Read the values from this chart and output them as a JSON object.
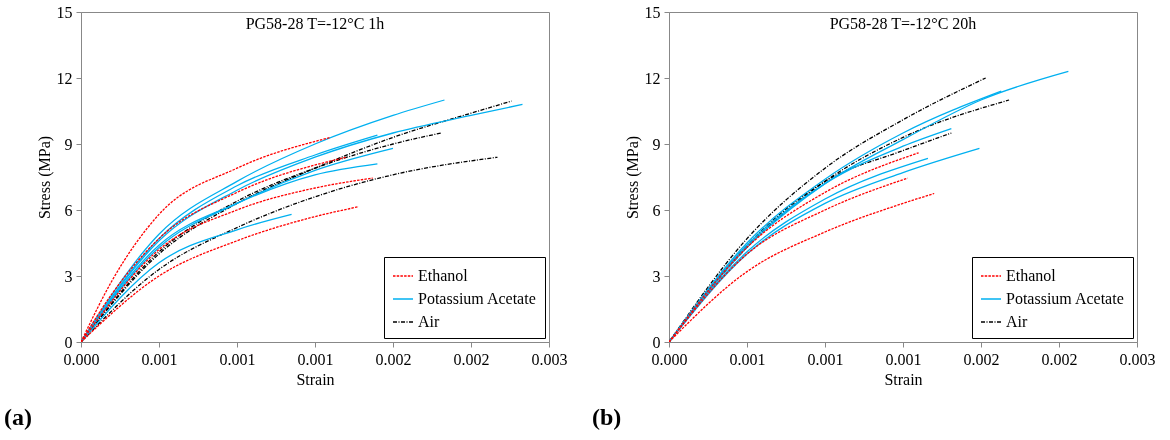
{
  "chart_data": [
    {
      "type": "line",
      "title": "PG58-28 T=-12°C 1h",
      "xlabel": "Strain",
      "ylabel": "Stress (MPa)",
      "annotations": [
        "(a)"
      ],
      "xlim": [
        0,
        0.003
      ],
      "ylim": [
        0,
        15
      ],
      "xticks": [
        {
          "value": 0,
          "label": "0.000"
        },
        {
          "value": 0.0005,
          "label": "0.001"
        },
        {
          "value": 0.001,
          "label": "0.001"
        },
        {
          "value": 0.0015,
          "label": "0.001"
        },
        {
          "value": 0.002,
          "label": "0.002"
        },
        {
          "value": 0.0025,
          "label": "0.002"
        },
        {
          "value": 0.003,
          "label": "0.003"
        }
      ],
      "yticks": [
        0,
        3,
        6,
        9,
        12,
        15
      ],
      "grid": false,
      "legend": "bottom right",
      "series": [
        {
          "name": "Ethanol",
          "color": "#ff0000",
          "line_style": "dashed",
          "x": [
            0,
            0.0002,
            0.0005,
            0.001,
            0.0016
          ],
          "values": [
            0,
            2.8,
            5.8,
            7.9,
            9.3
          ]
        },
        {
          "color": "#ff0000",
          "line_style": "dashed",
          "x": [
            0,
            0.0002,
            0.0005,
            0.001,
            0.0017
          ],
          "values": [
            0,
            2.2,
            4.7,
            6.8,
            8.4
          ]
        },
        {
          "color": "#ff0000",
          "line_style": "dashed",
          "x": [
            0,
            0.0005,
            0.001,
            0.0015,
            0.00187
          ],
          "values": [
            0,
            4.2,
            6.0,
            7.0,
            7.45
          ]
        },
        {
          "color": "#ff0000",
          "line_style": "dashed",
          "x": [
            0,
            0.0005,
            0.001,
            0.0015,
            0.00178
          ],
          "values": [
            0,
            3.0,
            4.6,
            5.7,
            6.15
          ]
        },
        {
          "name": "Potassium Acetate",
          "color": "#00b0f0",
          "line_style": "solid",
          "x": [
            0,
            0.0005,
            0.001,
            0.0015,
            0.002,
            0.00233
          ],
          "values": [
            0,
            4.9,
            7.3,
            9.0,
            10.3,
            11.0
          ]
        },
        {
          "color": "#00b0f0",
          "line_style": "solid",
          "x": [
            0,
            0.0005,
            0.001,
            0.0015,
            0.002,
            0.0025,
            0.00283
          ],
          "values": [
            0,
            4.6,
            6.9,
            8.4,
            9.5,
            10.3,
            10.8
          ]
        },
        {
          "color": "#00b0f0",
          "line_style": "solid",
          "x": [
            0,
            0.0005,
            0.001,
            0.0015,
            0.0019
          ],
          "values": [
            0,
            4.7,
            7.1,
            8.5,
            9.4
          ]
        },
        {
          "color": "#00b0f0",
          "line_style": "solid",
          "x": [
            0,
            0.0005,
            0.001,
            0.0015,
            0.0019
          ],
          "values": [
            0,
            4.4,
            6.3,
            7.6,
            8.1
          ]
        },
        {
          "color": "#00b0f0",
          "line_style": "solid",
          "x": [
            0,
            0.0005,
            0.001,
            0.0015,
            0.002
          ],
          "values": [
            0,
            4.3,
            6.3,
            7.8,
            8.8
          ]
        },
        {
          "color": "#00b0f0",
          "line_style": "solid",
          "x": [
            0,
            0.0005,
            0.001,
            0.00135
          ],
          "values": [
            0,
            3.6,
            5.1,
            5.8
          ]
        },
        {
          "name": "Air",
          "color": "#000000",
          "line_style": "dashdot",
          "x": [
            0,
            0.0005,
            0.001,
            0.0015,
            0.002,
            0.0025,
            0.00276
          ],
          "values": [
            0,
            4.0,
            6.3,
            7.9,
            9.3,
            10.4,
            10.95
          ]
        },
        {
          "color": "#000000",
          "line_style": "dashdot",
          "x": [
            0,
            0.0005,
            0.001,
            0.0015,
            0.002,
            0.00231
          ],
          "values": [
            0,
            4.1,
            6.4,
            7.9,
            9.0,
            9.5
          ]
        },
        {
          "color": "#000000",
          "line_style": "dashdot",
          "x": [
            0,
            0.0005,
            0.001,
            0.0015,
            0.002,
            0.00267
          ],
          "values": [
            0,
            3.3,
            5.2,
            6.6,
            7.6,
            8.4
          ]
        }
      ]
    },
    {
      "type": "line",
      "title": "PG58-28 T=-12°C 20h",
      "xlabel": "Strain",
      "ylabel": "Stress (MPa)",
      "annotations": [
        "(b)"
      ],
      "xlim": [
        0,
        0.003
      ],
      "ylim": [
        0,
        15
      ],
      "xticks": [
        {
          "value": 0,
          "label": "0.000"
        },
        {
          "value": 0.0005,
          "label": "0.001"
        },
        {
          "value": 0.001,
          "label": "0.001"
        },
        {
          "value": 0.0015,
          "label": "0.001"
        },
        {
          "value": 0.002,
          "label": "0.002"
        },
        {
          "value": 0.0025,
          "label": "0.002"
        },
        {
          "value": 0.003,
          "label": "0.003"
        }
      ],
      "yticks": [
        0,
        3,
        6,
        9,
        12,
        15
      ],
      "grid": false,
      "legend": "bottom right",
      "series": [
        {
          "name": "Ethanol",
          "color": "#ff0000",
          "line_style": "dashed",
          "x": [
            0,
            0.0005,
            0.001,
            0.0015,
            0.0017
          ],
          "values": [
            0,
            3.2,
            5.0,
            6.3,
            6.75
          ]
        },
        {
          "color": "#ff0000",
          "line_style": "dashed",
          "x": [
            0,
            0.0005,
            0.001,
            0.0016
          ],
          "values": [
            0,
            4.3,
            6.8,
            8.6
          ]
        },
        {
          "color": "#ff0000",
          "line_style": "dashed",
          "x": [
            0,
            0.0005,
            0.001,
            0.00153
          ],
          "values": [
            0,
            4.0,
            6.0,
            7.45
          ]
        },
        {
          "name": "Potassium Acetate",
          "color": "#00b0f0",
          "line_style": "solid",
          "x": [
            0,
            0.0005,
            0.001,
            0.0015,
            0.002,
            0.00256
          ],
          "values": [
            0,
            4.3,
            7.2,
            9.2,
            11.0,
            12.3
          ]
        },
        {
          "color": "#00b0f0",
          "line_style": "solid",
          "x": [
            0,
            0.0005,
            0.001,
            0.0015,
            0.00213
          ],
          "values": [
            0,
            4.5,
            7.4,
            9.5,
            11.4
          ]
        },
        {
          "color": "#00b0f0",
          "line_style": "solid",
          "x": [
            0,
            0.0005,
            0.001,
            0.0015,
            0.00181
          ],
          "values": [
            0,
            4.4,
            7.2,
            8.9,
            9.7
          ]
        },
        {
          "color": "#00b0f0",
          "line_style": "solid",
          "x": [
            0,
            0.0005,
            0.001,
            0.0015,
            0.00199
          ],
          "values": [
            0,
            4.0,
            6.3,
            7.7,
            8.8
          ]
        },
        {
          "color": "#00b0f0",
          "line_style": "solid",
          "x": [
            0,
            0.0005,
            0.001,
            0.00166
          ],
          "values": [
            0,
            4.1,
            6.5,
            8.35
          ]
        },
        {
          "name": "Air",
          "color": "#000000",
          "line_style": "dashdot",
          "x": [
            0,
            0.0005,
            0.001,
            0.0015,
            0.00203
          ],
          "values": [
            0,
            4.7,
            7.9,
            10.1,
            12.0
          ]
        },
        {
          "color": "#000000",
          "line_style": "dashdot",
          "x": [
            0,
            0.0005,
            0.001,
            0.0015,
            0.00218
          ],
          "values": [
            0,
            4.3,
            7.3,
            9.3,
            11.0
          ]
        },
        {
          "color": "#000000",
          "line_style": "dashdot",
          "x": [
            0,
            0.0005,
            0.001,
            0.0015,
            0.00181
          ],
          "values": [
            0,
            4.4,
            7.3,
            8.7,
            9.5
          ]
        }
      ]
    }
  ]
}
